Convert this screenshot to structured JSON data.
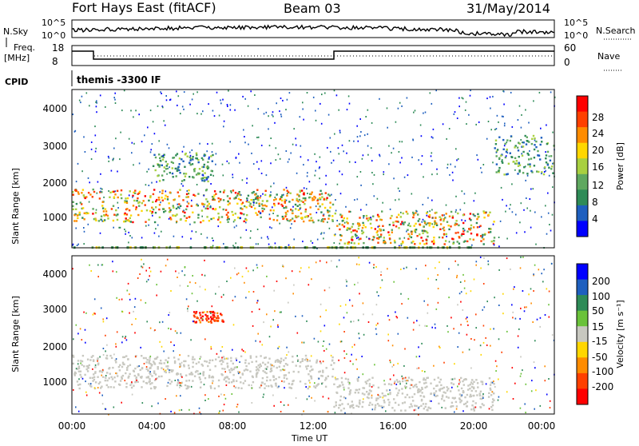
{
  "header": {
    "station": "Fort Hays East (fitACF)",
    "beam": "Beam 03",
    "date": "31/May/2014"
  },
  "top_panels": {
    "nsky_label": "N.Sky",
    "nsky_ticks": [
      "10^5",
      "10^0"
    ],
    "nsearch_label": "N.Search",
    "nsearch_ticks": [
      "10^5",
      "10^0"
    ],
    "freq_label_1": "Freq.",
    "freq_label_2": "[MHz]",
    "freq_ticks": [
      "18",
      "8"
    ],
    "nave_label": "Nave",
    "nave_ticks": [
      "60",
      "0"
    ],
    "cpid_label": "CPID",
    "cpid_text": "themis -3300 IF"
  },
  "axes": {
    "ylabel": "Slant Range [km]",
    "yticks": [
      "4000",
      "3000",
      "2000",
      "1000"
    ],
    "xlabel": "Time UT",
    "xticks": [
      "00:00",
      "04:00",
      "08:00",
      "12:00",
      "16:00",
      "20:00",
      "00:00"
    ]
  },
  "colorbars": {
    "power_label": "Power [dB]",
    "power_ticks": [
      "28",
      "24",
      "20",
      "16",
      "12",
      "8",
      "4"
    ],
    "velocity_label": "Velocity [m s⁻¹]",
    "velocity_ticks": [
      "200",
      "100",
      "50",
      "15",
      "-15",
      "-50",
      "-100",
      "-200"
    ]
  },
  "colors": {
    "power_scale": [
      "#0000ff",
      "#1e5fbf",
      "#2e8b57",
      "#5fa85f",
      "#a8d040",
      "#ffd700",
      "#ff8c00",
      "#ff4000",
      "#ff0000"
    ],
    "velocity_scale": [
      "#0000ff",
      "#1e5fbf",
      "#2e8b57",
      "#6ac23a",
      "#c8c8c0",
      "#ffd700",
      "#ff8c00",
      "#ff4000",
      "#ff0000"
    ]
  },
  "chart_data": [
    {
      "type": "heatmap",
      "title": "Power",
      "xlabel": "Time UT",
      "ylabel": "Slant Range [km]",
      "xlim": [
        "00:00",
        "24:00"
      ],
      "ylim": [
        180,
        4500
      ],
      "colorbar": {
        "label": "Power [dB]",
        "range": [
          0,
          30
        ]
      },
      "features": [
        {
          "name": "near-range band",
          "time": [
            "00:00",
            "13:00"
          ],
          "range_km": [
            900,
            1800
          ],
          "power_dB": [
            8,
            28
          ]
        },
        {
          "name": "far-range band morning",
          "time": [
            "04:00",
            "07:00"
          ],
          "range_km": [
            2000,
            2800
          ],
          "power_dB": [
            4,
            16
          ]
        },
        {
          "name": "evening near band",
          "time": [
            "13:00",
            "21:00"
          ],
          "range_km": [
            300,
            1200
          ],
          "power_dB": [
            8,
            28
          ]
        },
        {
          "name": "late far band",
          "time": [
            "21:00",
            "24:00"
          ],
          "range_km": [
            2200,
            3300
          ],
          "power_dB": [
            4,
            16
          ]
        }
      ]
    },
    {
      "type": "heatmap",
      "title": "Velocity",
      "xlabel": "Time UT",
      "ylabel": "Slant Range [km]",
      "xlim": [
        "00:00",
        "24:00"
      ],
      "ylim": [
        180,
        4500
      ],
      "colorbar": {
        "label": "Velocity [m s⁻¹]",
        "range": [
          -200,
          200
        ]
      },
      "features": [
        {
          "name": "ground scatter band",
          "time": [
            "00:00",
            "13:00"
          ],
          "range_km": [
            900,
            1800
          ],
          "velocity_ms": [
            -15,
            15
          ]
        },
        {
          "name": "negative velocity patch",
          "time": [
            "06:00",
            "07:30"
          ],
          "range_km": [
            2700,
            3000
          ],
          "velocity_ms": [
            -200,
            -100
          ]
        },
        {
          "name": "evening ground scatter",
          "time": [
            "13:00",
            "21:00"
          ],
          "range_km": [
            300,
            1200
          ],
          "velocity_ms": [
            -15,
            15
          ]
        }
      ]
    }
  ]
}
